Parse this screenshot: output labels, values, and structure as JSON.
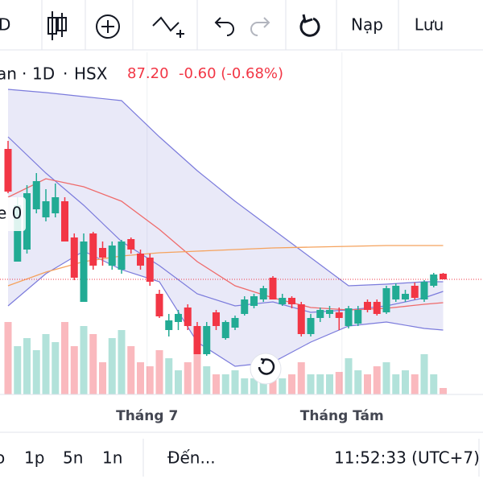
{
  "toolbar": {
    "interval": "D",
    "reload": "Nạp",
    "save": "Lưu"
  },
  "legend": {
    "symbol": "an",
    "interval": "1D",
    "exchange": "HSX",
    "price": "87.20",
    "change": "-0.60 (-0.68%)"
  },
  "indicator_label": "e 0",
  "chart_data": {
    "type": "candlestick",
    "ylim": [
      72.9,
      115.4
    ],
    "volume_lim": [
      0,
      425
    ],
    "up_color": "#22ab94",
    "down_color": "#f23645",
    "open": [
      103.4,
      89.4,
      90.9,
      95.9,
      94.9,
      95.4,
      96.9,
      92.4,
      84.4,
      92.9,
      91.1,
      88.9,
      88.4,
      92.2,
      90.4,
      89.9,
      85.4,
      80.9,
      81.9,
      83.7,
      81.4,
      77.9,
      83.1,
      79.9,
      81.2,
      82.9,
      83.9,
      84.7,
      87.4,
      84.1,
      84.9,
      84.1,
      80.4,
      82.4,
      82.9,
      83.1,
      81.4,
      81.7,
      84.4,
      84.4,
      83.1,
      84.7,
      84.7,
      86.4,
      84.7,
      86.4,
      87.9
    ],
    "high": [
      104.4,
      97.4,
      98.9,
      100.4,
      98.4,
      99.1,
      97.4,
      92.9,
      92.9,
      93.1,
      91.9,
      91.9,
      92.1,
      92.4,
      90.9,
      90.4,
      85.9,
      82.9,
      83.4,
      84.1,
      81.9,
      81.9,
      83.4,
      82.1,
      82.7,
      85.1,
      85.4,
      86.4,
      87.6,
      85.4,
      85.1,
      84.4,
      82.9,
      83.7,
      83.9,
      83.7,
      83.9,
      83.9,
      84.7,
      84.7,
      86.4,
      86.7,
      85.9,
      86.8,
      87.1,
      88.0,
      88.0
    ],
    "low": [
      97.9,
      89.4,
      90.4,
      95.4,
      94.4,
      94.9,
      91.9,
      87.1,
      84.4,
      88.4,
      88.9,
      88.4,
      87.9,
      90.4,
      88.4,
      86.4,
      82.4,
      80.1,
      80.9,
      80.9,
      77.9,
      77.7,
      80.9,
      79.7,
      80.9,
      82.7,
      83.6,
      84.4,
      84.7,
      83.9,
      83.6,
      80.1,
      80.1,
      81.9,
      82.4,
      80.9,
      81.1,
      81.4,
      83.1,
      82.7,
      82.9,
      84.4,
      84.4,
      84.7,
      84.4,
      86.2,
      87.2
    ],
    "close": [
      98.1,
      96.4,
      97.9,
      99.4,
      96.9,
      97.4,
      91.9,
      87.4,
      91.9,
      88.9,
      89.9,
      91.4,
      91.9,
      90.9,
      88.9,
      86.9,
      82.6,
      82.1,
      82.9,
      81.4,
      77.9,
      81.4,
      81.4,
      81.9,
      82.4,
      84.7,
      85.1,
      86.1,
      84.7,
      84.9,
      84.1,
      80.4,
      82.4,
      83.4,
      83.4,
      82.4,
      83.6,
      83.4,
      83.4,
      82.9,
      86.1,
      86.4,
      85.4,
      84.9,
      86.9,
      87.8,
      87.2
    ],
    "volume": [
      90,
      60,
      70,
      55,
      75,
      65,
      90,
      60,
      85,
      75,
      40,
      70,
      80,
      60,
      40,
      35,
      55,
      45,
      30,
      40,
      50,
      35,
      25,
      25,
      30,
      20,
      20,
      30,
      25,
      20,
      25,
      40,
      25,
      25,
      25,
      28,
      45,
      30,
      25,
      35,
      40,
      25,
      30,
      25,
      50,
      25,
      8
    ],
    "xticks": [
      {
        "value": 14.7,
        "label": "Tháng 7"
      },
      {
        "value": 35.3,
        "label": "Tháng Tám"
      }
    ],
    "indicator_x": [
      0,
      4,
      8,
      12,
      16,
      20,
      24,
      28,
      32,
      36,
      40,
      44,
      46
    ],
    "bollinger": {
      "color": "#7b7bdc",
      "fill": "rgba(120,120,210,0.16)",
      "upper": [
        110.8,
        110.4,
        109.9,
        109.4,
        104.9,
        100.7,
        96.9,
        93.4,
        89.9,
        86.4,
        86.6,
        86.9,
        86.9
      ],
      "lower": [
        83.9,
        87.9,
        90.7,
        88.4,
        86.9,
        79.4,
        76.4,
        76.9,
        79.4,
        81.4,
        81.9,
        81.1,
        80.9
      ],
      "basis": [
        104.9,
        100.4,
        96.4,
        91.9,
        88.9,
        85.4,
        83.9,
        84.4,
        83.1,
        83.4,
        83.9,
        84.9,
        85.7
      ]
    },
    "moving_averages": [
      {
        "color": "#ef6b6b",
        "values": [
          97.4,
          99.7,
          98.7,
          96.9,
          93.4,
          89.4,
          86.4,
          84.9,
          83.7,
          83.4,
          83.6,
          84.1,
          84.3
        ]
      },
      {
        "color": "#f5a25d",
        "values": [
          86.4,
          88.1,
          89.4,
          90.1,
          90.5,
          90.7,
          90.9,
          91.1,
          91.2,
          91.3,
          91.4,
          91.4,
          91.4
        ]
      }
    ]
  },
  "footer": {
    "ranges": [
      "o",
      "1p",
      "5n",
      "1n"
    ],
    "goto": "Đến...",
    "time": "11:52:33 (UTC+7)"
  }
}
